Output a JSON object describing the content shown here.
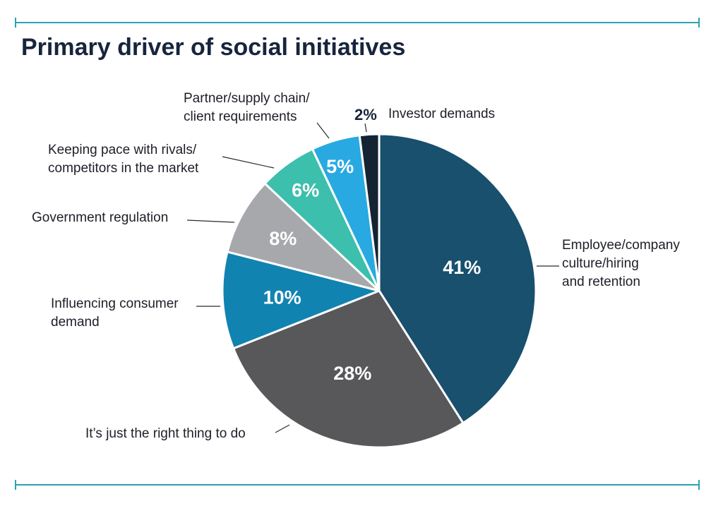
{
  "chart_data": {
    "type": "pie",
    "title": "Primary driver of social initiatives",
    "value_suffix": "%",
    "slices": [
      {
        "label": [
          "Employee/company",
          "culture/hiring",
          "and retention"
        ],
        "value": 41,
        "color": "#18506e"
      },
      {
        "label": [
          "It’s just the right thing to do"
        ],
        "value": 28,
        "color": "#58585b"
      },
      {
        "label": [
          "Influencing consumer",
          "demand"
        ],
        "value": 10,
        "color": "#1183b0"
      },
      {
        "label": [
          "Government regulation"
        ],
        "value": 8,
        "color": "#a7a8ac"
      },
      {
        "label": [
          "Keeping pace with rivals/",
          "competitors in the market"
        ],
        "value": 6,
        "color": "#3dbfad"
      },
      {
        "label": [
          "Partner/supply chain/",
          "client requirements"
        ],
        "value": 5,
        "color": "#29a9e1"
      },
      {
        "label": [
          "Investor demands"
        ],
        "value": 2,
        "color": "#142433"
      }
    ]
  },
  "colors": {
    "rule": "#2aa3b3",
    "title": "#17253d",
    "slice_border": "#ffffff"
  }
}
